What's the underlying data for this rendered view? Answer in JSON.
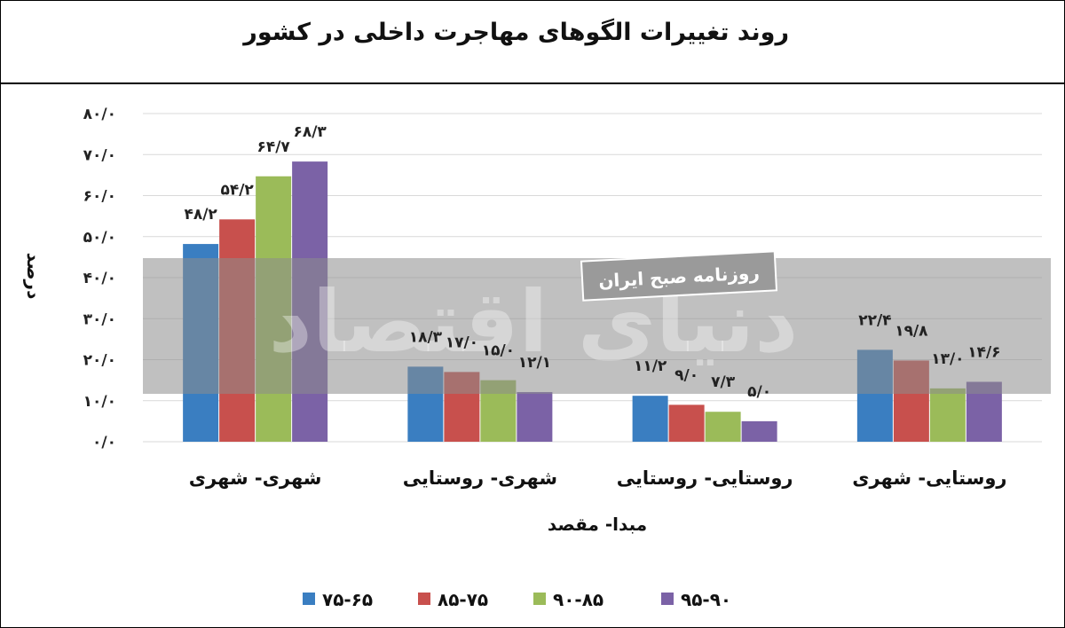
{
  "chart_data": {
    "type": "bar",
    "title": "روند تغییرات الگوهای مهاجرت داخلی در کشور",
    "xlabel": "مبدا- مقصد",
    "ylabel": "درصد",
    "ylim": [
      0,
      80
    ],
    "yticks": [
      "۰/۰",
      "۱۰/۰",
      "۲۰/۰",
      "۳۰/۰",
      "۴۰/۰",
      "۵۰/۰",
      "۶۰/۰",
      "۷۰/۰",
      "۸۰/۰"
    ],
    "grid": true,
    "legend_position": "bottom",
    "categories": [
      "شهری- شهری",
      "شهری- روستایی",
      "روستایی- روستایی",
      "روستایی- شهری"
    ],
    "series": [
      {
        "name": "۷۵-۶۵",
        "color": "#3a7ec1",
        "values": [
          48.2,
          18.3,
          11.2,
          22.4
        ],
        "labels": [
          "۴۸/۲",
          "۱۸/۳",
          "۱۱/۲",
          "۲۲/۴"
        ]
      },
      {
        "name": "۸۵-۷۵",
        "color": "#c8504d",
        "values": [
          54.2,
          17.0,
          9.0,
          19.8
        ],
        "labels": [
          "۵۴/۲",
          "۱۷/۰",
          "۹/۰",
          "۱۹/۸"
        ]
      },
      {
        "name": "۹۰-۸۵",
        "color": "#9bbb59",
        "values": [
          64.7,
          15.0,
          7.3,
          13.0
        ],
        "labels": [
          "۶۴/۷",
          "۱۵/۰",
          "۷/۳",
          "۱۳/۰"
        ]
      },
      {
        "name": "۹۵-۹۰",
        "color": "#7b62a6",
        "values": [
          68.3,
          12.1,
          5.0,
          14.6
        ],
        "labels": [
          "۶۸/۳",
          "۱۲/۱",
          "۵/۰",
          "۱۴/۶"
        ]
      }
    ]
  },
  "watermark": {
    "label": "روزنامه صبح ایران",
    "brand": "دنیای اقتصاد"
  }
}
